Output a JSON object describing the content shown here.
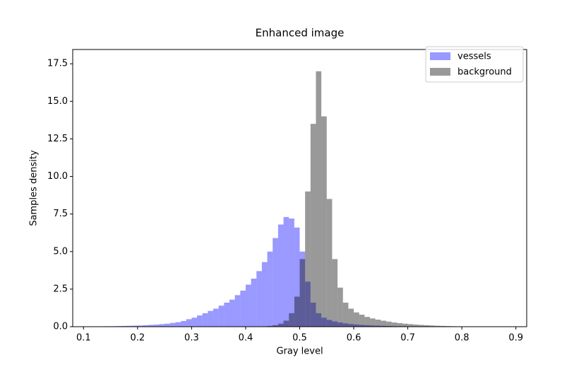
{
  "chart_data": {
    "type": "histogram",
    "title": "Enhanced image",
    "x_label": "Gray level",
    "y_label": "Samples density",
    "bins": [
      0.1,
      0.11,
      0.12,
      0.13,
      0.14,
      0.15,
      0.16,
      0.17,
      0.18,
      0.19,
      0.2,
      0.21,
      0.22,
      0.23,
      0.24,
      0.25,
      0.26,
      0.27,
      0.28,
      0.29,
      0.3,
      0.31,
      0.32,
      0.33,
      0.34,
      0.35,
      0.36,
      0.37,
      0.38,
      0.39,
      0.4,
      0.41,
      0.42,
      0.43,
      0.44,
      0.45,
      0.46,
      0.47,
      0.48,
      0.49,
      0.5,
      0.51,
      0.52,
      0.53,
      0.54,
      0.55,
      0.56,
      0.57,
      0.58,
      0.59,
      0.6,
      0.61,
      0.62,
      0.63,
      0.64,
      0.65,
      0.66,
      0.67,
      0.68,
      0.69,
      0.7,
      0.71,
      0.72,
      0.73,
      0.74,
      0.75,
      0.76,
      0.77,
      0.78,
      0.79,
      0.8,
      0.81,
      0.82,
      0.83,
      0.84,
      0.85,
      0.86,
      0.87,
      0.88,
      0.89,
      0.9
    ],
    "series": [
      {
        "name": "vessels",
        "color": "#0000ff",
        "values": [
          0.01,
          0.01,
          0.02,
          0.02,
          0.03,
          0.03,
          0.04,
          0.05,
          0.06,
          0.07,
          0.08,
          0.1,
          0.12,
          0.14,
          0.17,
          0.2,
          0.25,
          0.3,
          0.38,
          0.5,
          0.6,
          0.75,
          0.9,
          1.05,
          1.2,
          1.4,
          1.6,
          1.8,
          2.1,
          2.4,
          2.8,
          3.2,
          3.7,
          4.3,
          5.0,
          5.9,
          6.8,
          7.3,
          7.2,
          6.6,
          5.0,
          3.0,
          1.6,
          0.9,
          0.6,
          0.45,
          0.35,
          0.28,
          0.22,
          0.18,
          0.15,
          0.12,
          0.1,
          0.08,
          0.07,
          0.06,
          0.05,
          0.04,
          0.03,
          0.03,
          0.02,
          0.02,
          0.02,
          0.01,
          0.01,
          0.01,
          0.01,
          0,
          0,
          0,
          0,
          0,
          0,
          0,
          0,
          0,
          0,
          0,
          0,
          0
        ]
      },
      {
        "name": "background",
        "color": "#000000",
        "values": [
          0,
          0,
          0,
          0,
          0,
          0,
          0,
          0,
          0,
          0,
          0,
          0,
          0,
          0,
          0,
          0,
          0,
          0,
          0,
          0,
          0,
          0,
          0,
          0,
          0,
          0,
          0,
          0,
          0,
          0,
          0,
          0,
          0.01,
          0.02,
          0.05,
          0.1,
          0.2,
          0.4,
          0.9,
          2.0,
          4.5,
          9.0,
          13.5,
          17.0,
          14.0,
          8.5,
          4.5,
          2.6,
          1.6,
          1.2,
          0.95,
          0.8,
          0.65,
          0.55,
          0.47,
          0.4,
          0.34,
          0.28,
          0.24,
          0.2,
          0.17,
          0.14,
          0.12,
          0.1,
          0.08,
          0.06,
          0.05,
          0.04,
          0.03,
          0.02,
          0.02,
          0.01,
          0.01,
          0.01,
          0,
          0,
          0,
          0,
          0,
          0
        ]
      }
    ],
    "alpha": 0.4,
    "xlim": [
      0.08,
      0.92
    ],
    "xticks": [
      0.1,
      0.2,
      0.3,
      0.4,
      0.5,
      0.6,
      0.7,
      0.8,
      0.9
    ],
    "ylim": [
      0,
      18.45
    ],
    "yticks": [
      {
        "value": 0,
        "label": "0.0"
      },
      2.5,
      {
        "value": 5,
        "label": "5.0"
      },
      7.5,
      {
        "value": 10,
        "label": "10.0"
      },
      12.5,
      {
        "value": 15,
        "label": "15.0"
      },
      17.5
    ],
    "legend": "upper right"
  }
}
